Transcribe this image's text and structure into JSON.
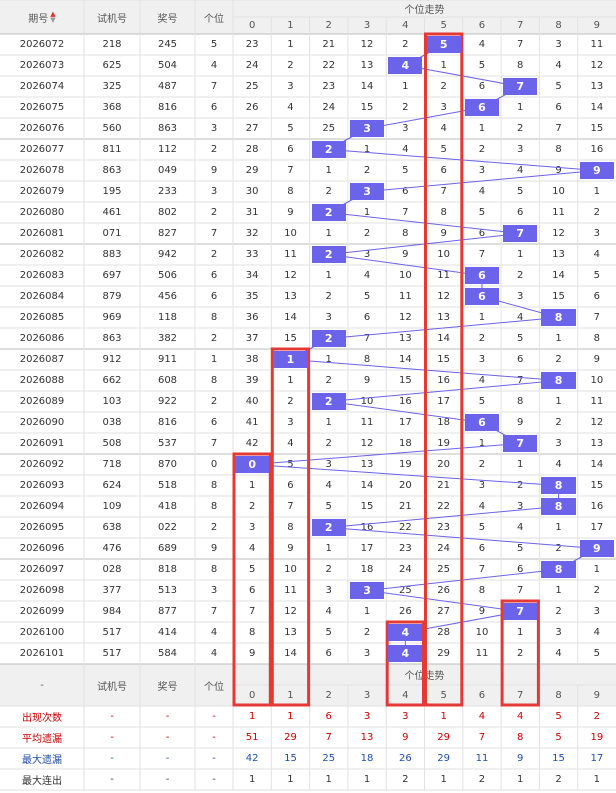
{
  "header": {
    "issue_label": "期号",
    "sort_icon": "sort-arrows-icon",
    "trial_label": "试机号",
    "prize_label": "奖号",
    "units_label": "个位",
    "trend_label": "个位走势",
    "digits": [
      "0",
      "1",
      "2",
      "3",
      "4",
      "5",
      "6",
      "7",
      "8",
      "9"
    ]
  },
  "footer": {
    "dash": "-",
    "trial_label": "试机号",
    "prize_label": "奖号",
    "units_label": "个位",
    "trend_label": "个位走势",
    "digits": [
      "0",
      "1",
      "2",
      "3",
      "4",
      "5",
      "6",
      "7",
      "8",
      "9"
    ]
  },
  "rows": [
    {
      "issue": "2026072",
      "trial": "218",
      "prize": "245",
      "units": "5",
      "cells": [
        "23",
        "1",
        "21",
        "12",
        "2",
        "5",
        "4",
        "7",
        "3",
        "11"
      ]
    },
    {
      "issue": "2026073",
      "trial": "625",
      "prize": "504",
      "units": "4",
      "cells": [
        "24",
        "2",
        "22",
        "13",
        "4",
        "1",
        "5",
        "8",
        "4",
        "12"
      ]
    },
    {
      "issue": "2026074",
      "trial": "325",
      "prize": "487",
      "units": "7",
      "cells": [
        "25",
        "3",
        "23",
        "14",
        "1",
        "2",
        "6",
        "7",
        "5",
        "13"
      ]
    },
    {
      "issue": "2026075",
      "trial": "368",
      "prize": "816",
      "units": "6",
      "cells": [
        "26",
        "4",
        "24",
        "15",
        "2",
        "3",
        "6",
        "1",
        "6",
        "14"
      ]
    },
    {
      "issue": "2026076",
      "trial": "560",
      "prize": "863",
      "units": "3",
      "cells": [
        "27",
        "5",
        "25",
        "3",
        "3",
        "4",
        "1",
        "2",
        "7",
        "15"
      ]
    },
    {
      "issue": "2026077",
      "trial": "811",
      "prize": "112",
      "units": "2",
      "cells": [
        "28",
        "6",
        "2",
        "1",
        "4",
        "5",
        "2",
        "3",
        "8",
        "16"
      ]
    },
    {
      "issue": "2026078",
      "trial": "863",
      "prize": "049",
      "units": "9",
      "cells": [
        "29",
        "7",
        "1",
        "2",
        "5",
        "6",
        "3",
        "4",
        "9",
        "9"
      ]
    },
    {
      "issue": "2026079",
      "trial": "195",
      "prize": "233",
      "units": "3",
      "cells": [
        "30",
        "8",
        "2",
        "3",
        "6",
        "7",
        "4",
        "5",
        "10",
        "1"
      ]
    },
    {
      "issue": "2026080",
      "trial": "461",
      "prize": "802",
      "units": "2",
      "cells": [
        "31",
        "9",
        "2",
        "1",
        "7",
        "8",
        "5",
        "6",
        "11",
        "2"
      ]
    },
    {
      "issue": "2026081",
      "trial": "071",
      "prize": "827",
      "units": "7",
      "cells": [
        "32",
        "10",
        "1",
        "2",
        "8",
        "9",
        "6",
        "7",
        "12",
        "3"
      ]
    },
    {
      "issue": "2026082",
      "trial": "883",
      "prize": "942",
      "units": "2",
      "cells": [
        "33",
        "11",
        "2",
        "3",
        "9",
        "10",
        "7",
        "1",
        "13",
        "4"
      ]
    },
    {
      "issue": "2026083",
      "trial": "697",
      "prize": "506",
      "units": "6",
      "cells": [
        "34",
        "12",
        "1",
        "4",
        "10",
        "11",
        "6",
        "2",
        "14",
        "5"
      ]
    },
    {
      "issue": "2026084",
      "trial": "879",
      "prize": "456",
      "units": "6",
      "cells": [
        "35",
        "13",
        "2",
        "5",
        "11",
        "12",
        "6",
        "3",
        "15",
        "6"
      ]
    },
    {
      "issue": "2026085",
      "trial": "969",
      "prize": "118",
      "units": "8",
      "cells": [
        "36",
        "14",
        "3",
        "6",
        "12",
        "13",
        "1",
        "4",
        "8",
        "7"
      ]
    },
    {
      "issue": "2026086",
      "trial": "863",
      "prize": "382",
      "units": "2",
      "cells": [
        "37",
        "15",
        "2",
        "7",
        "13",
        "14",
        "2",
        "5",
        "1",
        "8"
      ]
    },
    {
      "issue": "2026087",
      "trial": "912",
      "prize": "911",
      "units": "1",
      "cells": [
        "38",
        "1",
        "1",
        "8",
        "14",
        "15",
        "3",
        "6",
        "2",
        "9"
      ]
    },
    {
      "issue": "2026088",
      "trial": "662",
      "prize": "608",
      "units": "8",
      "cells": [
        "39",
        "1",
        "2",
        "9",
        "15",
        "16",
        "4",
        "7",
        "8",
        "10"
      ]
    },
    {
      "issue": "2026089",
      "trial": "103",
      "prize": "922",
      "units": "2",
      "cells": [
        "40",
        "2",
        "2",
        "10",
        "16",
        "17",
        "5",
        "8",
        "1",
        "11"
      ]
    },
    {
      "issue": "2026090",
      "trial": "038",
      "prize": "816",
      "units": "6",
      "cells": [
        "41",
        "3",
        "1",
        "11",
        "17",
        "18",
        "6",
        "9",
        "2",
        "12"
      ]
    },
    {
      "issue": "2026091",
      "trial": "508",
      "prize": "537",
      "units": "7",
      "cells": [
        "42",
        "4",
        "2",
        "12",
        "18",
        "19",
        "1",
        "7",
        "3",
        "13"
      ]
    },
    {
      "issue": "2026092",
      "trial": "718",
      "prize": "870",
      "units": "0",
      "cells": [
        "0",
        "5",
        "3",
        "13",
        "19",
        "20",
        "2",
        "1",
        "4",
        "14"
      ]
    },
    {
      "issue": "2026093",
      "trial": "624",
      "prize": "518",
      "units": "8",
      "cells": [
        "1",
        "6",
        "4",
        "14",
        "20",
        "21",
        "3",
        "2",
        "8",
        "15"
      ]
    },
    {
      "issue": "2026094",
      "trial": "109",
      "prize": "418",
      "units": "8",
      "cells": [
        "2",
        "7",
        "5",
        "15",
        "21",
        "22",
        "4",
        "3",
        "8",
        "16"
      ]
    },
    {
      "issue": "2026095",
      "trial": "638",
      "prize": "022",
      "units": "2",
      "cells": [
        "3",
        "8",
        "2",
        "16",
        "22",
        "23",
        "5",
        "4",
        "1",
        "17"
      ]
    },
    {
      "issue": "2026096",
      "trial": "476",
      "prize": "689",
      "units": "9",
      "cells": [
        "4",
        "9",
        "1",
        "17",
        "23",
        "24",
        "6",
        "5",
        "2",
        "9"
      ]
    },
    {
      "issue": "2026097",
      "trial": "028",
      "prize": "818",
      "units": "8",
      "cells": [
        "5",
        "10",
        "2",
        "18",
        "24",
        "25",
        "7",
        "6",
        "8",
        "1"
      ]
    },
    {
      "issue": "2026098",
      "trial": "377",
      "prize": "513",
      "units": "3",
      "cells": [
        "6",
        "11",
        "3",
        "3",
        "25",
        "26",
        "8",
        "7",
        "1",
        "2"
      ]
    },
    {
      "issue": "2026099",
      "trial": "984",
      "prize": "877",
      "units": "7",
      "cells": [
        "7",
        "12",
        "4",
        "1",
        "26",
        "27",
        "9",
        "7",
        "2",
        "3"
      ]
    },
    {
      "issue": "2026100",
      "trial": "517",
      "prize": "414",
      "units": "4",
      "cells": [
        "8",
        "13",
        "5",
        "2",
        "4",
        "28",
        "10",
        "1",
        "3",
        "4"
      ]
    },
    {
      "issue": "2026101",
      "trial": "517",
      "prize": "584",
      "units": "4",
      "cells": [
        "9",
        "14",
        "6",
        "3",
        "4",
        "29",
        "11",
        "2",
        "4",
        "5"
      ]
    }
  ],
  "stats": [
    {
      "label": "出现次数",
      "dash": "-",
      "color": "red",
      "values": [
        "1",
        "1",
        "6",
        "3",
        "3",
        "1",
        "4",
        "4",
        "5",
        "2"
      ]
    },
    {
      "label": "平均遗漏",
      "dash": "-",
      "color": "red",
      "values": [
        "51",
        "29",
        "7",
        "13",
        "9",
        "29",
        "7",
        "8",
        "5",
        "19"
      ]
    },
    {
      "label": "最大遗漏",
      "dash": "-",
      "color": "blue",
      "values": [
        "42",
        "15",
        "25",
        "18",
        "26",
        "29",
        "11",
        "9",
        "15",
        "17"
      ]
    },
    {
      "label": "最大连出",
      "dash": "-",
      "color": "dark",
      "values": [
        "1",
        "1",
        "1",
        "1",
        "2",
        "1",
        "2",
        "1",
        "2",
        "1"
      ]
    }
  ],
  "colors": {
    "ball": "#6b63ea",
    "highlight_box": "#e53935",
    "line": "#6b63ea",
    "header_bg": "#f0f0f0",
    "stat_red": "#cc0000",
    "stat_blue": "#1f4fa8"
  }
}
